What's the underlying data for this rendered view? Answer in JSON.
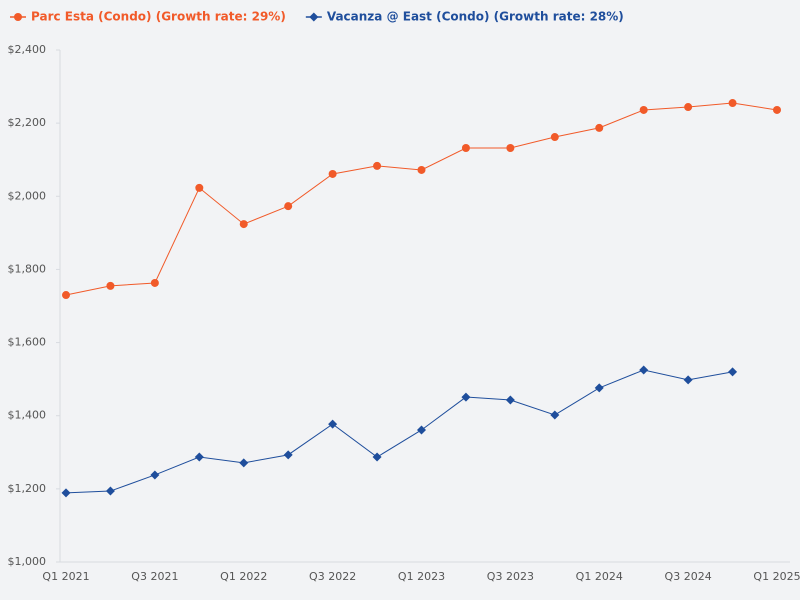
{
  "chart_data": {
    "type": "line",
    "categories": [
      "Q1 2021",
      null,
      "Q3 2021",
      null,
      "Q1 2022",
      null,
      "Q3 2022",
      null,
      "Q1 2023",
      null,
      "Q3 2023",
      null,
      "Q1 2024",
      null,
      "Q3 2024",
      null,
      "Q1 2025"
    ],
    "series": [
      {
        "name": "Parc Esta (Condo) (Growth rate: 29%)",
        "color": "#f15a29",
        "marker": "circle",
        "values": [
          1730,
          1755,
          1763,
          2023,
          1924,
          1973,
          2061,
          2083,
          2072,
          2132,
          2132,
          2162,
          2187,
          2236,
          2244,
          2255,
          2236
        ]
      },
      {
        "name": "Vacanza @ East (Condo) (Growth rate: 28%)",
        "color": "#1f4e9c",
        "marker": "diamond",
        "values": [
          1189,
          1194,
          1238,
          1287,
          1271,
          1293,
          1377,
          1287,
          1361,
          1451,
          1443,
          1402,
          1476,
          1525,
          1498,
          1520,
          null
        ]
      }
    ],
    "ylim": [
      1000,
      2400
    ],
    "yticks": [
      {
        "value": 1000,
        "label": "$1,000"
      },
      {
        "value": 1200,
        "label": "$1,200"
      },
      {
        "value": 1400,
        "label": "$1,400"
      },
      {
        "value": 1600,
        "label": "$1,600"
      },
      {
        "value": 1800,
        "label": "$1,800"
      },
      {
        "value": 2000,
        "label": "$2,000"
      },
      {
        "value": 2200,
        "label": "$2,200"
      },
      {
        "value": 2400,
        "label": "$2,400"
      }
    ],
    "grid": false,
    "legend": "top-left"
  }
}
